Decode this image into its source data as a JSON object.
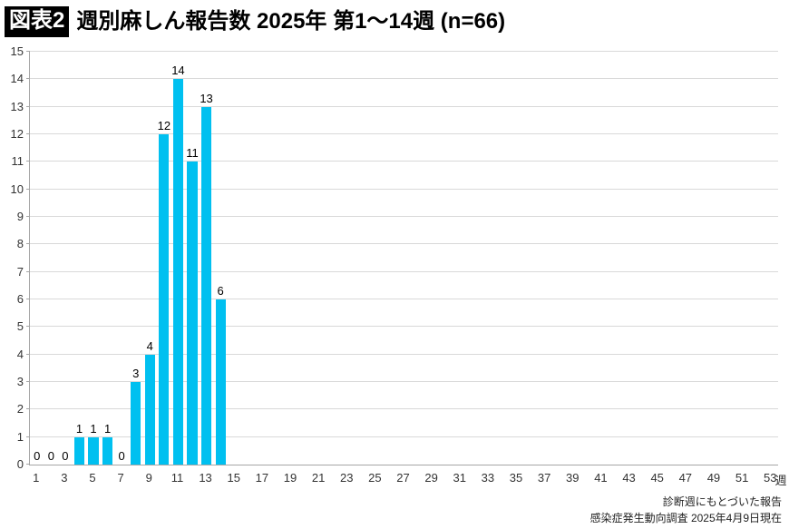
{
  "header": {
    "badge": "図表2",
    "title": "週別麻しん報告数 2025年 第1〜14週 (n=66)"
  },
  "chart_data": {
    "type": "bar",
    "title": "週別麻しん報告数 2025年 第1〜14週 (n=66)",
    "categories": [
      1,
      2,
      3,
      4,
      5,
      6,
      7,
      8,
      9,
      10,
      11,
      12,
      13,
      14
    ],
    "values": [
      0,
      0,
      0,
      1,
      1,
      1,
      0,
      3,
      4,
      12,
      14,
      11,
      13,
      6
    ],
    "total_n": 66,
    "xlabel": "週",
    "ylabel": "",
    "ylim": [
      0,
      15
    ],
    "y_ticks": [
      0,
      1,
      2,
      3,
      4,
      5,
      6,
      7,
      8,
      9,
      10,
      11,
      12,
      13,
      14,
      15
    ],
    "x_ticks": [
      1,
      3,
      5,
      7,
      9,
      11,
      13,
      15,
      17,
      19,
      21,
      23,
      25,
      27,
      29,
      31,
      33,
      35,
      37,
      39,
      41,
      43,
      45,
      47,
      49,
      51,
      53
    ],
    "x_axis_week_count": 53,
    "bar_color": "#00c0f0",
    "grid": true,
    "value_labels": true,
    "legend": "none"
  },
  "footer": {
    "line1": "診断週にもとづいた報告",
    "line2": "感染症発生動向調査 2025年4月9日現在"
  }
}
